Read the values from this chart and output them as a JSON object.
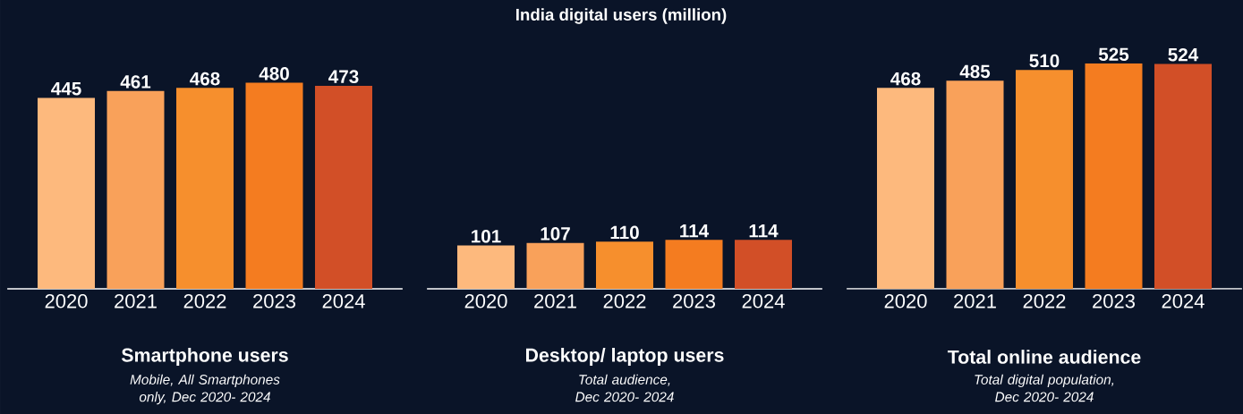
{
  "chart_data": [
    {
      "type": "bar",
      "title": "Smartphone users",
      "subtitle": "Mobile, All Smartphones only, Dec 2020- 2024",
      "categories": [
        "2020",
        "2021",
        "2022",
        "2023",
        "2024"
      ],
      "values": [
        445,
        461,
        468,
        480,
        473
      ],
      "colors": [
        "#fdb97d",
        "#f9a15a",
        "#f68f2d",
        "#f47c20",
        "#d24f27"
      ],
      "tick_labels": "x",
      "data_labels": true
    },
    {
      "type": "bar",
      "title": "Desktop/ laptop users",
      "subtitle": "Total audience, Dec 2020- 2024",
      "annotations": [
        "India digital users (million)"
      ],
      "categories": [
        "2020",
        "2021",
        "2022",
        "2023",
        "2024"
      ],
      "values": [
        101,
        107,
        110,
        114,
        114
      ],
      "colors": [
        "#fdb97d",
        "#f9a15a",
        "#f68f2d",
        "#f47c20",
        "#d24f27"
      ],
      "tick_labels": "x",
      "data_labels": true
    },
    {
      "type": "bar",
      "title": "Total online audience",
      "subtitle": "Total digital population, Dec 2020- 2024",
      "categories": [
        "2020",
        "2021",
        "2022",
        "2023",
        "2024"
      ],
      "values": [
        468,
        485,
        510,
        525,
        524
      ],
      "colors": [
        "#fdb97d",
        "#f9a15a",
        "#f68f2d",
        "#f47c20",
        "#d24f27"
      ],
      "tick_labels": "x",
      "data_labels": true
    }
  ]
}
